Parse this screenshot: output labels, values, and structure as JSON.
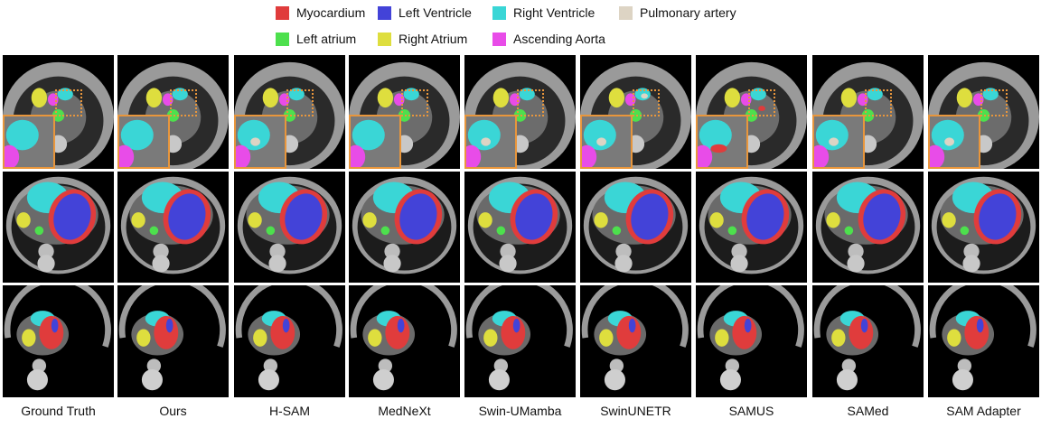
{
  "legend": [
    {
      "label": "Myocardium",
      "color": "#e03c3c"
    },
    {
      "label": "Left Ventricle",
      "color": "#4343d8"
    },
    {
      "label": "Right Ventricle",
      "color": "#3ad6d6"
    },
    {
      "label": "Pulmonary artery",
      "color": "#ddd4c4"
    },
    {
      "label": "Left atrium",
      "color": "#4de04d"
    },
    {
      "label": "Right Atrium",
      "color": "#dede3e"
    },
    {
      "label": "Ascending Aorta",
      "color": "#e84ce8"
    }
  ],
  "methods": [
    "Ground Truth",
    "Ours",
    "H-SAM",
    "MedNeXt",
    "Swin-UMamba",
    "SwinUNETR",
    "SAMUS",
    "SAMed",
    "SAM Adapter"
  ]
}
